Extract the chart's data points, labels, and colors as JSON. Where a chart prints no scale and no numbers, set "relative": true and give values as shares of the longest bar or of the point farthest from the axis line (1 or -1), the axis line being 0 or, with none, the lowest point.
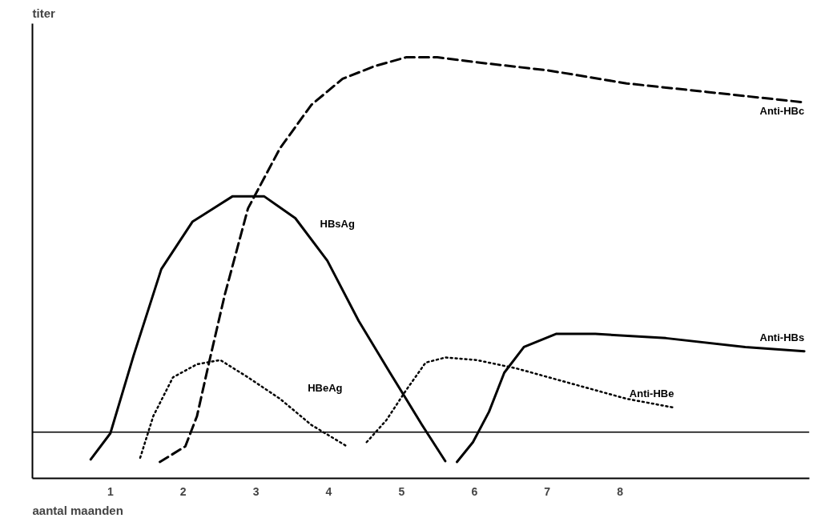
{
  "chart_data": {
    "type": "line",
    "relative": true,
    "ylabel": "titer",
    "xlabel": "aantal maanden",
    "xlim": [
      -0.07,
      10.6
    ],
    "xticks": [
      1,
      2,
      3,
      4,
      5,
      6,
      7,
      8
    ],
    "grid": false,
    "marker": "none",
    "ref_lines": [
      {
        "axis": "y",
        "value": 0.11,
        "color": "#000000",
        "line_style": "solid"
      }
    ],
    "series": [
      {
        "name": "HBsAg",
        "color": "#000000",
        "line_style": "solid",
        "x": [
          0.73,
          1.0,
          1.32,
          1.7,
          2.13,
          2.68,
          3.11,
          3.54,
          3.98,
          4.41,
          4.84,
          5.28,
          5.6
        ],
        "values": [
          0.045,
          0.107,
          0.292,
          0.497,
          0.61,
          0.67,
          0.67,
          0.618,
          0.517,
          0.374,
          0.251,
          0.127,
          0.041
        ]
      },
      {
        "name": "HBeAg",
        "color": "#000000",
        "line_style": "dotted",
        "x": [
          1.41,
          1.59,
          1.86,
          2.19,
          2.51,
          2.89,
          3.33,
          3.76,
          4.25
        ],
        "values": [
          0.049,
          0.148,
          0.24,
          0.271,
          0.281,
          0.24,
          0.189,
          0.127,
          0.076
        ]
      },
      {
        "name": "Anti-HBc",
        "color": "#000000",
        "line_style": "dashed",
        "x": [
          1.68,
          2.03,
          2.19,
          2.35,
          2.57,
          2.89,
          3.33,
          3.76,
          4.19,
          4.63,
          5.06,
          5.49,
          6.14,
          7.01,
          8.09,
          9.18,
          10.53
        ],
        "values": [
          0.039,
          0.076,
          0.148,
          0.271,
          0.435,
          0.641,
          0.784,
          0.887,
          0.949,
          0.979,
          1.0,
          1.0,
          0.986,
          0.969,
          0.938,
          0.918,
          0.893
        ]
      },
      {
        "name": "Anti-HBs",
        "color": "#000000",
        "line_style": "solid",
        "x": [
          5.76,
          5.98,
          6.2,
          6.41,
          6.68,
          7.12,
          7.66,
          8.63,
          9.72,
          10.53
        ],
        "values": [
          0.039,
          0.086,
          0.158,
          0.251,
          0.312,
          0.343,
          0.343,
          0.333,
          0.312,
          0.302
        ]
      },
      {
        "name": "Anti-HBe",
        "color": "#000000",
        "line_style": "dotted",
        "x": [
          4.52,
          4.79,
          5.06,
          5.33,
          5.6,
          6.03,
          6.58,
          7.23,
          8.09,
          8.74
        ],
        "values": [
          0.086,
          0.138,
          0.209,
          0.275,
          0.287,
          0.281,
          0.261,
          0.23,
          0.189,
          0.168
        ]
      }
    ]
  }
}
